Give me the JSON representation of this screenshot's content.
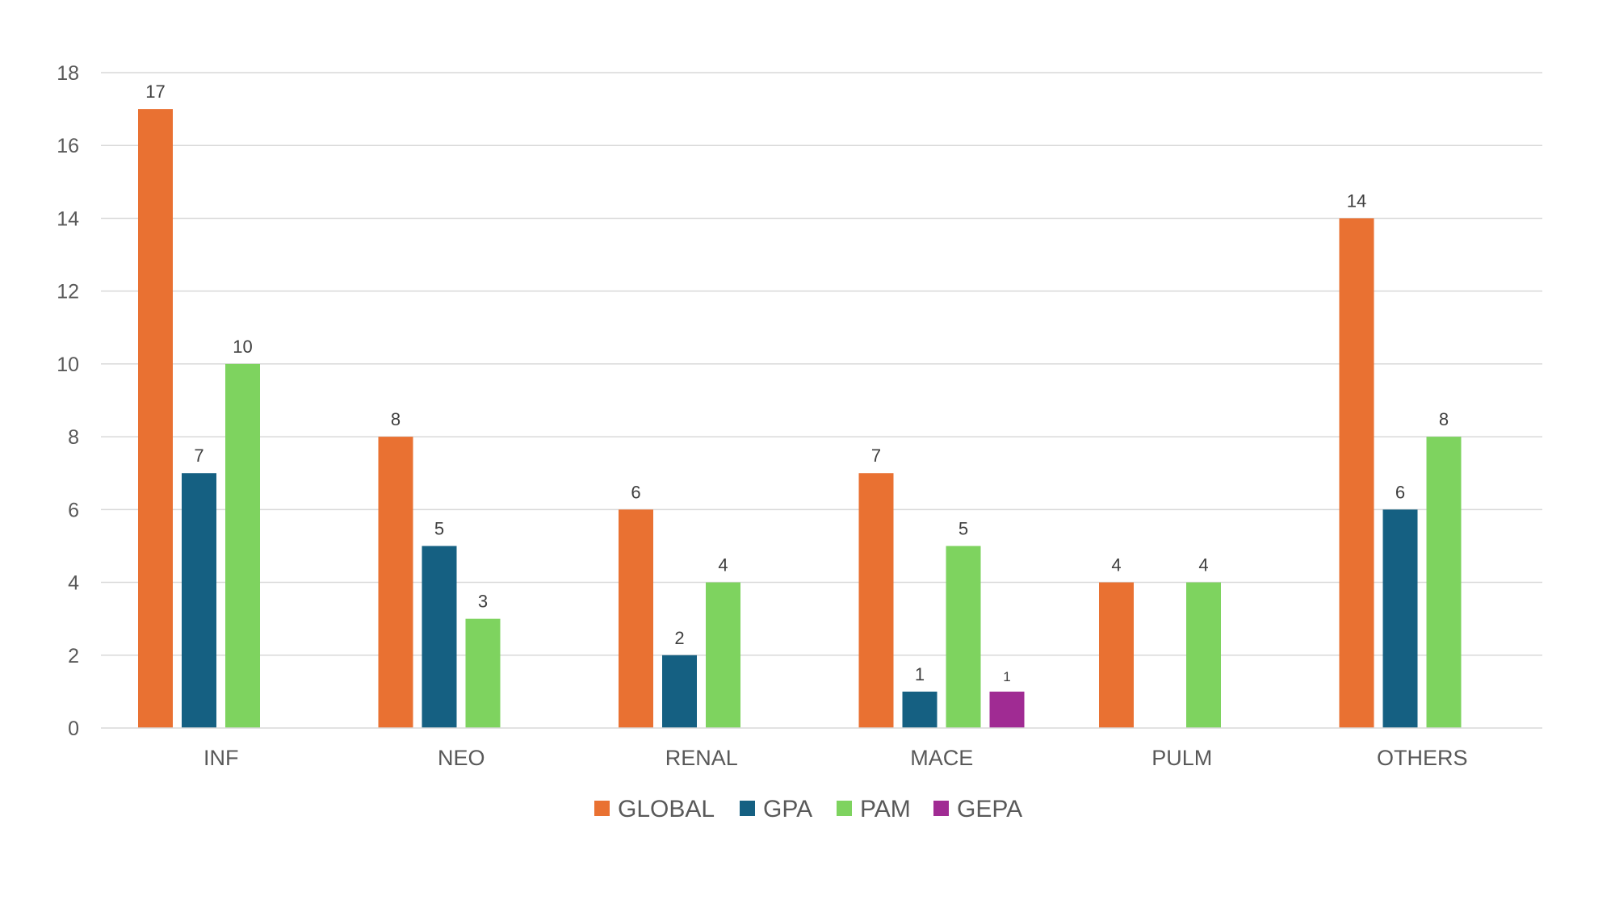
{
  "chart_data": {
    "type": "bar",
    "title": "",
    "xlabel": "",
    "ylabel": "",
    "categories": [
      "INF",
      "NEO",
      "RENAL",
      "MACE",
      "PULM",
      "OTHERS"
    ],
    "series": [
      {
        "name": "GLOBAL",
        "color": "#E97132",
        "values": [
          17,
          8,
          6,
          7,
          4,
          14
        ]
      },
      {
        "name": "GPA",
        "color": "#156082",
        "values": [
          7,
          5,
          2,
          1,
          0,
          6
        ]
      },
      {
        "name": "PAM",
        "color": "#7ED35F",
        "values": [
          10,
          3,
          4,
          5,
          4,
          8
        ]
      },
      {
        "name": "GEPA",
        "color": "#A02B93",
        "values": [
          0,
          0,
          0,
          1,
          0,
          0
        ]
      }
    ],
    "ylim": [
      0,
      18
    ],
    "yticks": [
      0,
      2,
      4,
      6,
      8,
      10,
      12,
      14,
      16,
      18
    ],
    "grid": true,
    "legend_position": "bottom",
    "data_labels": true
  }
}
